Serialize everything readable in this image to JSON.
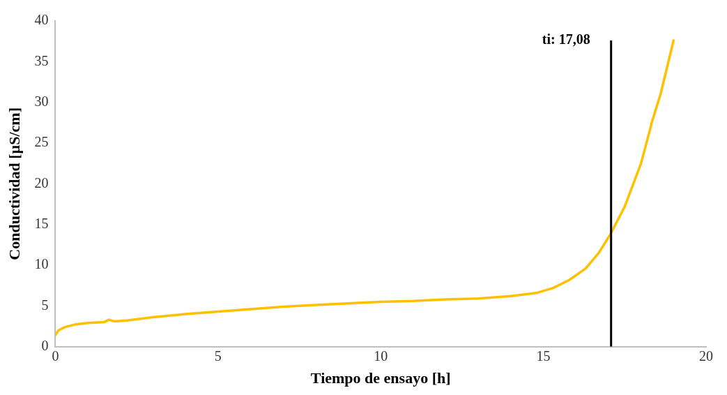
{
  "chart_data": {
    "type": "line",
    "xlabel": "Tiempo de ensayo [h]",
    "ylabel": "Conductividad [µS/cm]",
    "xlim": [
      0,
      20
    ],
    "xticks": [
      0,
      5,
      10,
      15,
      20
    ],
    "ylim": [
      0,
      40
    ],
    "yticks": [
      0,
      5,
      10,
      15,
      20,
      25,
      30,
      35,
      40
    ],
    "grid": false,
    "legend": false,
    "marker": "none",
    "line_style": "solid",
    "series": [
      {
        "color": "#ffc000",
        "x": [
          0,
          0.1,
          0.3,
          0.6,
          1,
          1.5,
          1.65,
          1.8,
          2.2,
          3,
          4,
          5,
          6,
          7,
          8,
          9,
          10,
          11,
          12,
          13,
          14,
          14.8,
          15.3,
          15.8,
          16.3,
          16.7,
          17.06,
          17.5,
          18,
          18.3,
          18.32,
          18.6,
          19
        ],
        "values": [
          1.4,
          2.0,
          2.4,
          2.7,
          2.9,
          3.0,
          3.3,
          3.1,
          3.2,
          3.6,
          4.0,
          4.3,
          4.6,
          4.9,
          5.1,
          5.3,
          5.5,
          5.6,
          5.8,
          5.9,
          6.2,
          6.6,
          7.2,
          8.2,
          9.6,
          11.5,
          13.8,
          17.2,
          22.5,
          27.0,
          27.4,
          31,
          37.6
        ]
      }
    ],
    "ref_lines": [
      {
        "axis": "x",
        "value": 17.08,
        "label": "ti: 17,08",
        "color": "#000000"
      }
    ]
  }
}
